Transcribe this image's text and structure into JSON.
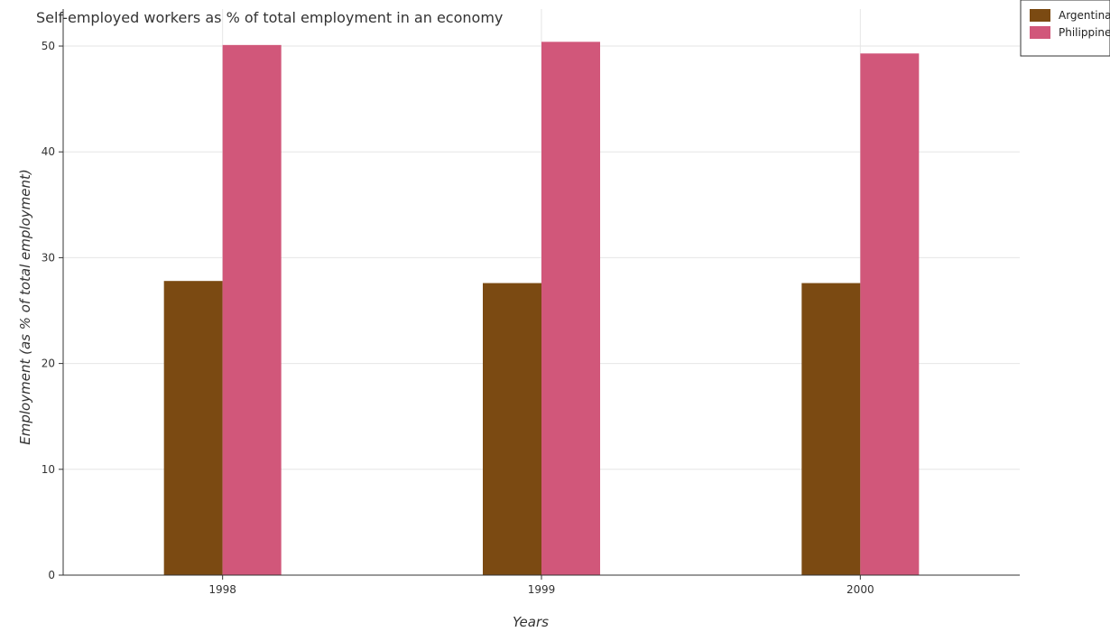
{
  "chart_data": {
    "type": "bar",
    "title": "Self-employed workers as % of total employment in an economy",
    "xlabel": "Years",
    "ylabel": "Employment (as % of total employment)",
    "categories": [
      "1998",
      "1999",
      "2000"
    ],
    "series": [
      {
        "name": "Argentina",
        "color": "#7b4a12",
        "values": [
          27.8,
          27.6,
          27.6
        ]
      },
      {
        "name": "Philippines",
        "color": "#d1577a",
        "values": [
          50.1,
          50.4,
          49.3
        ]
      }
    ],
    "ylim": [
      0,
      53.5
    ],
    "yticks": [
      0,
      10,
      20,
      30,
      40,
      50
    ],
    "grid": true,
    "legend_position": "top-right"
  }
}
